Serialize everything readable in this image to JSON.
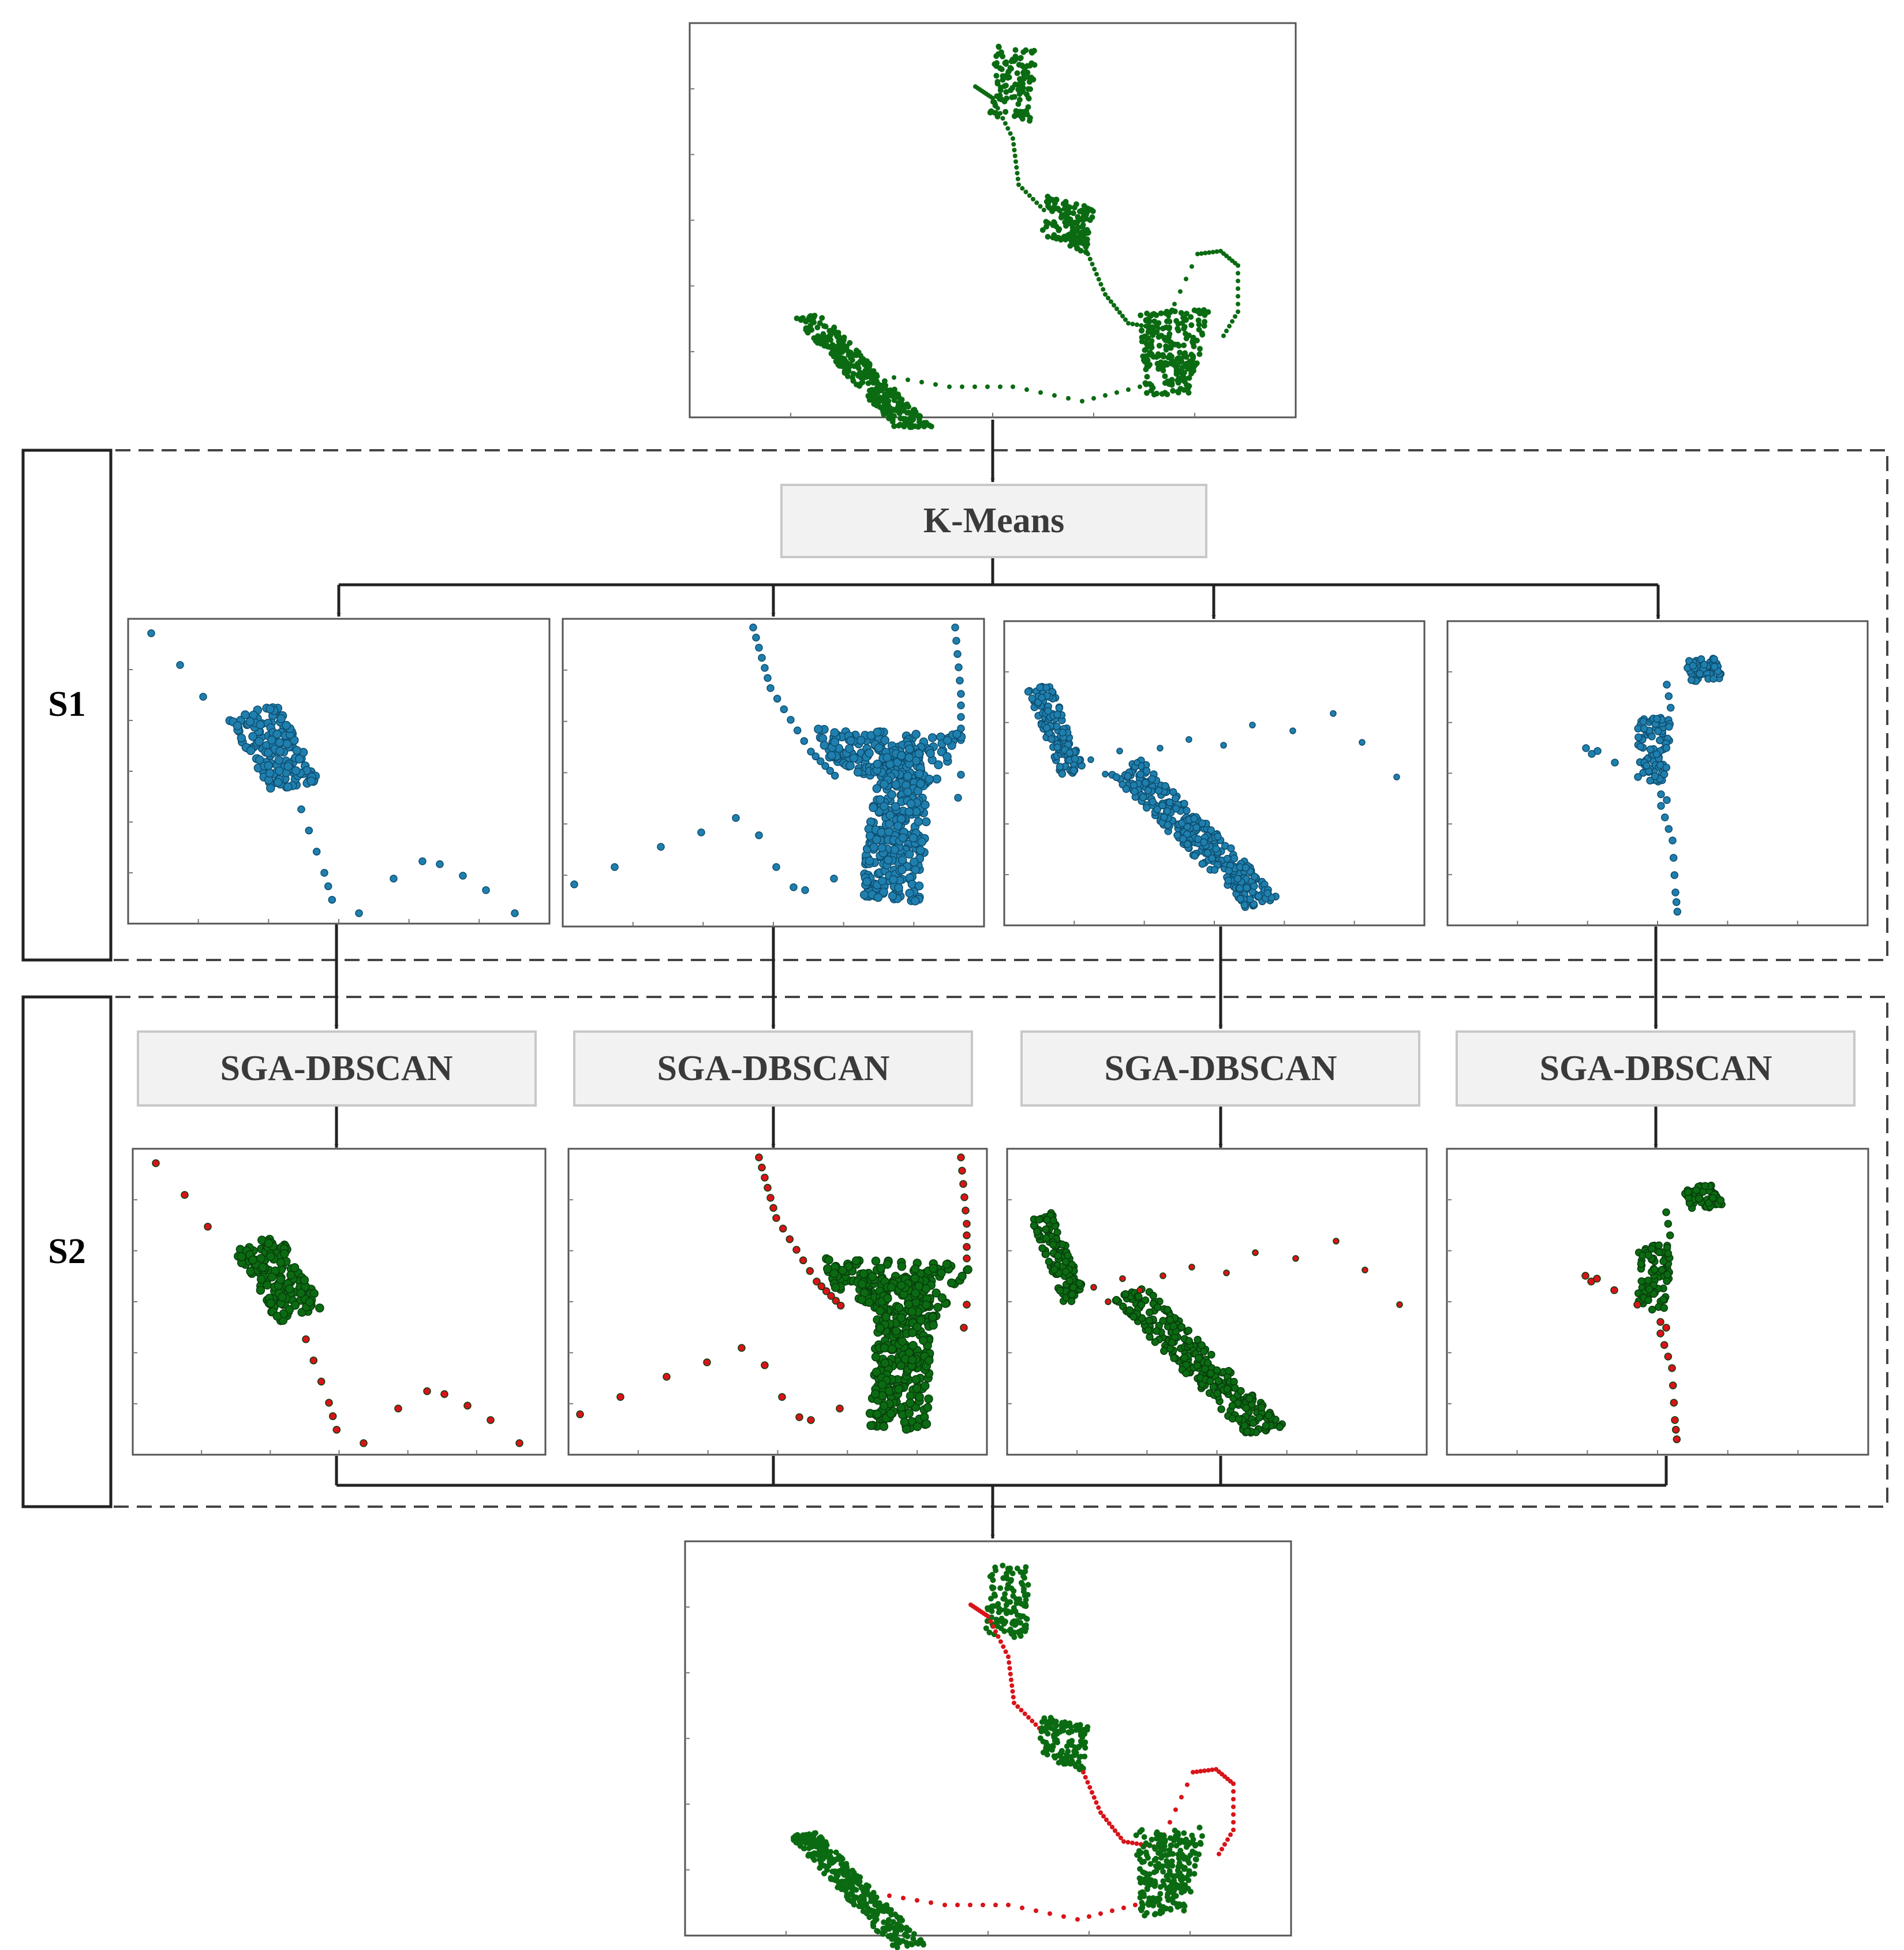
{
  "stages": {
    "s1": {
      "label": "S1"
    },
    "s2": {
      "label": "S2"
    }
  },
  "kmeans": {
    "label": "K-Means"
  },
  "sga": [
    {
      "label": "SGA-DBSCAN"
    },
    {
      "label": "SGA-DBSCAN"
    },
    {
      "label": "SGA-DBSCAN"
    },
    {
      "label": "SGA-DBSCAN"
    }
  ],
  "colors": {
    "input_points": "#0b6b12",
    "kmeans_cluster_points": "#1f7fae",
    "core_points": "#0b6b12",
    "noise_points": "#d8141a",
    "process_box_fill": "#f2f2f2",
    "process_box_border": "#c8c8c8",
    "stage_border": "#444444",
    "connector": "#222222"
  },
  "panels": {
    "input": {
      "description_color": "input_points"
    },
    "clusters": [
      "cluster-1",
      "cluster-2",
      "cluster-3",
      "cluster-4"
    ],
    "output": {
      "description_color": "core_points"
    }
  }
}
